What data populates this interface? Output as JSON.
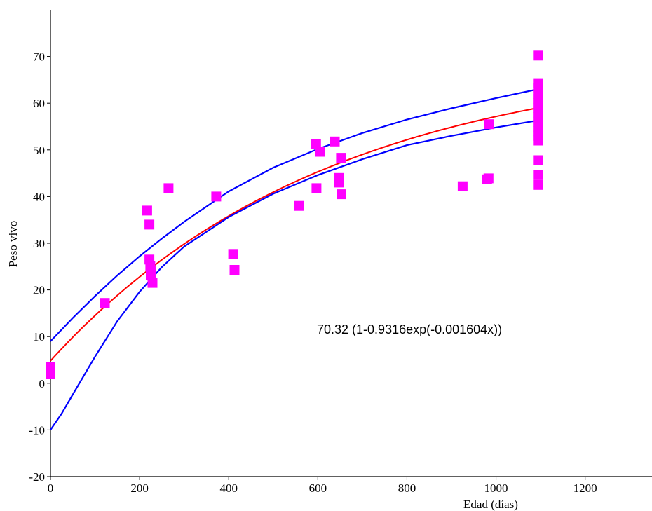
{
  "chart_data": {
    "type": "scatter",
    "title": "",
    "xlabel": "Edad (días)",
    "ylabel": "Peso vivo",
    "xlim": [
      0,
      1350
    ],
    "ylim": [
      -20,
      80
    ],
    "xticks": [
      0,
      200,
      400,
      600,
      800,
      1000,
      1200
    ],
    "yticks": [
      -20,
      -10,
      0,
      10,
      20,
      30,
      40,
      50,
      60,
      70
    ],
    "grid": false,
    "annotation": "70.32 (1-0.9316exp(-0.001604x))",
    "colors": {
      "points": "#ff00ff",
      "fit": "#ff0000",
      "bands": "#0000ff",
      "axis": "#000000"
    },
    "series": [
      {
        "kind": "scatter",
        "marker": "square",
        "color": "#ff00ff",
        "points": [
          [
            0,
            3.5
          ],
          [
            0,
            2.0
          ],
          [
            0,
            3.0
          ],
          [
            122,
            17.2
          ],
          [
            217,
            37.0
          ],
          [
            222,
            34.0
          ],
          [
            222,
            26.5
          ],
          [
            224,
            25.2
          ],
          [
            225,
            24.0
          ],
          [
            225,
            23.2
          ],
          [
            229,
            21.5
          ],
          [
            265,
            41.8
          ],
          [
            372,
            40.0
          ],
          [
            410,
            27.7
          ],
          [
            413,
            24.3
          ],
          [
            558,
            38.0
          ],
          [
            596,
            51.3
          ],
          [
            597,
            41.8
          ],
          [
            605,
            49.6
          ],
          [
            638,
            51.8
          ],
          [
            647,
            44.0
          ],
          [
            648,
            43.0
          ],
          [
            652,
            48.3
          ],
          [
            653,
            40.5
          ],
          [
            925,
            42.2
          ],
          [
            980,
            43.7
          ],
          [
            983,
            43.9
          ],
          [
            985,
            55.5
          ],
          [
            1094,
            70.2
          ],
          [
            1094,
            64.3
          ],
          [
            1094,
            63.3
          ],
          [
            1094,
            62.0
          ],
          [
            1094,
            61.0
          ],
          [
            1094,
            60.0
          ],
          [
            1094,
            59.0
          ],
          [
            1094,
            58.0
          ],
          [
            1094,
            57.0
          ],
          [
            1094,
            56.0
          ],
          [
            1094,
            55.0
          ],
          [
            1094,
            54.0
          ],
          [
            1094,
            53.0
          ],
          [
            1094,
            52.0
          ],
          [
            1094,
            47.8
          ],
          [
            1094,
            44.6
          ],
          [
            1094,
            42.5
          ]
        ]
      },
      {
        "kind": "fit",
        "color": "#ff0000",
        "a": 70.32,
        "b": 0.9316,
        "k": 0.001604,
        "x_range": [
          0,
          1094
        ]
      },
      {
        "kind": "band",
        "color": "#0000ff",
        "points": [
          [
            0,
            9.0
          ],
          [
            50,
            14.0
          ],
          [
            100,
            18.7
          ],
          [
            150,
            23.1
          ],
          [
            200,
            27.2
          ],
          [
            250,
            31.0
          ],
          [
            300,
            34.6
          ],
          [
            400,
            41.1
          ],
          [
            500,
            46.2
          ],
          [
            600,
            50.2
          ],
          [
            700,
            53.6
          ],
          [
            800,
            56.5
          ],
          [
            900,
            58.9
          ],
          [
            1000,
            61.1
          ],
          [
            1094,
            63.0
          ]
        ]
      },
      {
        "kind": "band",
        "color": "#0000ff",
        "points": [
          [
            0,
            -10.0
          ],
          [
            25,
            -6.5
          ],
          [
            50,
            -2.4
          ],
          [
            100,
            5.7
          ],
          [
            150,
            13.3
          ],
          [
            200,
            19.6
          ],
          [
            250,
            24.9
          ],
          [
            300,
            29.3
          ],
          [
            400,
            35.6
          ],
          [
            500,
            40.6
          ],
          [
            600,
            44.6
          ],
          [
            700,
            48.0
          ],
          [
            800,
            51.0
          ],
          [
            900,
            53.0
          ],
          [
            1000,
            54.8
          ],
          [
            1094,
            56.3
          ]
        ]
      }
    ]
  }
}
